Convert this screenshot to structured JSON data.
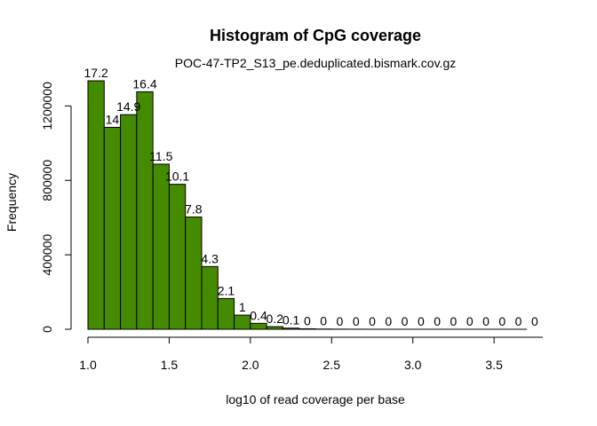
{
  "chart_data": {
    "type": "bar",
    "title": "Histogram of CpG coverage",
    "subtitle": "POC-47-TP2_S13_pe.deduplicated.bismark.cov.gz",
    "xlabel": "log10 of read coverage per base",
    "ylabel": "Frequency",
    "bar_color": "#458B00",
    "bar_outline": "#000000",
    "bin_width": 0.1,
    "bin_starts": [
      1.0,
      1.1,
      1.2,
      1.3,
      1.4,
      1.5,
      1.6,
      1.7,
      1.8,
      1.9,
      2.0,
      2.1,
      2.2,
      2.3,
      2.4,
      2.5,
      2.6,
      2.7,
      2.8,
      2.9,
      3.0,
      3.1,
      3.2,
      3.3,
      3.4,
      3.5,
      3.6,
      3.7
    ],
    "values": [
      1335000,
      1085000,
      1153000,
      1276000,
      887000,
      779000,
      603000,
      337000,
      165000,
      76000,
      32000,
      14000,
      6000,
      2500,
      1200,
      600,
      300,
      150,
      80,
      40,
      20,
      10,
      5,
      3,
      2,
      1,
      1,
      0
    ],
    "data_labels": [
      "17.2",
      "14",
      "14.9",
      "16.4",
      "11.5",
      "10.1",
      "7.8",
      "4.3",
      "2.1",
      "1",
      "0.4",
      "0.2",
      "0.1",
      "0",
      "0",
      "0",
      "0",
      "0",
      "0",
      "0",
      "0",
      "0",
      "0",
      "0",
      "0",
      "0",
      "0",
      "0"
    ],
    "xlim": [
      1.0,
      3.8
    ],
    "ylim": [
      0,
      1340000
    ],
    "x_ticks": [
      1.0,
      1.5,
      2.0,
      2.5,
      3.0,
      3.5
    ],
    "x_tick_labels": [
      "1.0",
      "1.5",
      "2.0",
      "2.5",
      "3.0",
      "3.5"
    ],
    "y_ticks": [
      0,
      400000,
      800000,
      1200000
    ],
    "y_tick_labels": [
      "0",
      "400000",
      "800000",
      "1200000"
    ],
    "grid": false,
    "legend": "none"
  }
}
